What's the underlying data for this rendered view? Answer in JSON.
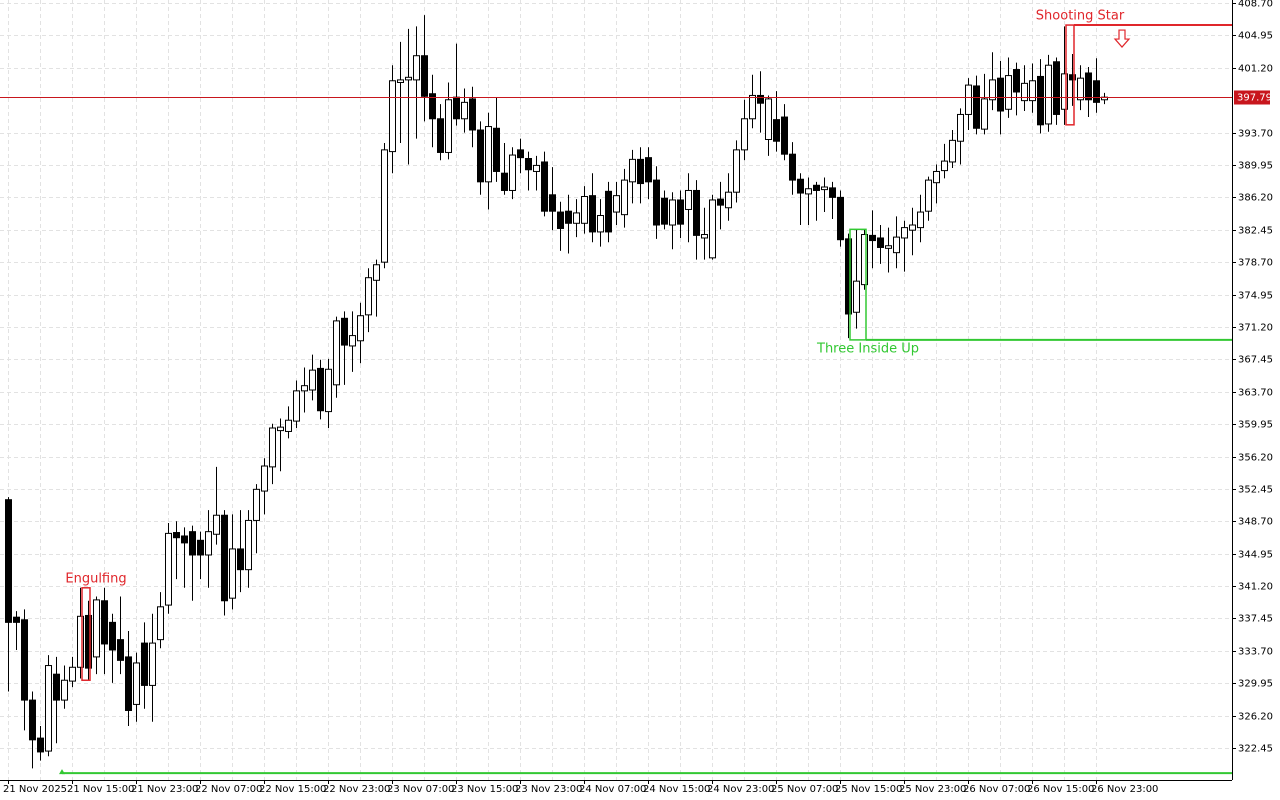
{
  "chart_data": {
    "type": "candlestick",
    "categories": [
      "21 Nov 2025",
      null,
      null,
      null,
      null,
      null,
      null,
      null,
      "21 Nov 15:00",
      null,
      null,
      null,
      null,
      null,
      null,
      null,
      "21 Nov 23:00",
      null,
      null,
      null,
      null,
      null,
      null,
      null,
      "22 Nov 07:00",
      null,
      null,
      null,
      null,
      null,
      null,
      null,
      "22 Nov 15:00",
      null,
      null,
      null,
      null,
      null,
      null,
      null,
      "22 Nov 23:00",
      null,
      null,
      null,
      null,
      null,
      null,
      null,
      "23 Nov 07:00",
      null,
      null,
      null,
      null,
      null,
      null,
      null,
      "23 Nov 15:00",
      null,
      null,
      null,
      null,
      null,
      null,
      null,
      "23 Nov 23:00",
      null,
      null,
      null,
      null,
      null,
      null,
      null,
      "24 Nov 07:00",
      null,
      null,
      null,
      null,
      null,
      null,
      null,
      "24 Nov 15:00",
      null,
      null,
      null,
      null,
      null,
      null,
      null,
      "24 Nov 23:00",
      null,
      null,
      null,
      null,
      null,
      null,
      null,
      "25 Nov 07:00",
      null,
      null,
      null,
      null,
      null,
      null,
      null,
      "25 Nov 15:00",
      null,
      null,
      null,
      null,
      null,
      null,
      null,
      "25 Nov 23:00",
      null,
      null,
      null,
      null,
      null,
      null,
      null,
      "26 Nov 07:00",
      null,
      null,
      null,
      null,
      null,
      null,
      null,
      "26 Nov 15:00",
      null,
      null,
      null,
      null,
      null,
      null,
      null,
      "26 Nov 23:00",
      null
    ],
    "open": [
      351.2,
      337.6,
      337.3,
      328.0,
      323.6,
      322.1,
      331.0,
      328.0,
      330.2,
      331.8,
      337.8,
      333.0,
      339.5,
      337.0,
      335.0,
      333.0,
      327.5,
      334.6,
      329.7,
      335.0,
      339.0,
      347.4,
      347.0,
      347.5,
      346.5,
      344.8,
      347.2,
      349.4,
      339.8,
      345.5,
      343.1,
      348.8,
      352.2,
      355.0,
      359.2,
      359.1,
      360.3,
      363.8,
      363.9,
      366.4,
      361.4,
      364.5,
      372.2,
      369.0,
      369.6,
      372.6,
      376.6,
      378.7,
      391.5,
      399.5,
      399.8,
      399.8,
      402.6,
      398.2,
      395.3,
      391.4,
      397.8,
      395.3,
      397.6,
      394.0,
      388.0,
      394.2,
      389.0,
      387.0,
      391.7,
      390.7,
      389.2,
      390.3,
      386.5,
      384.5,
      384.6,
      383.2,
      383.2,
      386.4,
      382.2,
      386.9,
      384.5,
      384.2,
      388.0,
      390.6,
      390.8,
      388.2,
      386.1,
      383.0,
      385.9,
      384.8,
      387.0,
      381.5,
      379.2,
      386.0,
      385.0,
      386.8,
      391.7,
      395.3,
      398.0,
      392.9,
      395.2,
      395.5,
      391.2,
      388.3,
      386.6,
      387.6,
      387.1,
      387.3,
      386.2,
      381.4,
      372.9,
      376.1,
      381.8,
      381.5,
      380.3,
      379.8,
      381.5,
      382.4,
      382.7,
      384.6,
      387.9,
      389.3,
      390.3,
      392.7,
      395.8,
      399.1,
      394.1,
      397.5,
      400.0,
      396.4,
      401.0,
      397.4,
      397.4,
      400.2,
      394.7,
      401.9,
      396.4,
      400.4,
      397.5,
      400.6,
      399.7,
      397.5
    ],
    "high": [
      351.5,
      338.3,
      338.5,
      329.0,
      325.0,
      333.2,
      333.0,
      332.0,
      333.0,
      341.0,
      339.5,
      340.0,
      341.0,
      338.0,
      340.0,
      336.0,
      333.5,
      337.0,
      338.0,
      340.5,
      348.5,
      348.7,
      348.0,
      348.2,
      347.5,
      350.0,
      355.0,
      350.0,
      349.5,
      350.0,
      350.0,
      353.0,
      356.0,
      360.0,
      360.6,
      362.0,
      365.0,
      366.5,
      368.0,
      367.4,
      367.5,
      372.4,
      373.0,
      373.0,
      374.0,
      378.0,
      379.0,
      392.5,
      401.5,
      404.2,
      405.7,
      406.0,
      407.3,
      400.4,
      397.0,
      399.5,
      404.0,
      398.8,
      399.0,
      395.0,
      396.0,
      397.8,
      392.5,
      392.0,
      393.0,
      391.5,
      391.0,
      391.5,
      389.7,
      385.7,
      386.5,
      386.0,
      387.5,
      389.0,
      386.0,
      388.0,
      388.0,
      389.5,
      391.7,
      392.0,
      392.0,
      389.8,
      387.0,
      386.8,
      387.0,
      389.0,
      388.2,
      385.0,
      386.5,
      388.0,
      389.0,
      392.8,
      397.5,
      400.4,
      400.8,
      398.0,
      398.5,
      397.0,
      392.6,
      389.0,
      388.5,
      388.0,
      388.5,
      388.0,
      387.0,
      382.0,
      382.5,
      382.5,
      384.7,
      383.0,
      382.7,
      384.0,
      383.5,
      385.0,
      386.5,
      388.6,
      390.0,
      392.4,
      394.0,
      396.5,
      400.0,
      400.3,
      400.5,
      403.0,
      402.0,
      402.4,
      401.8,
      401.5,
      401.7,
      402.2,
      402.7,
      402.4,
      406.0,
      402.8,
      401.5,
      401.3,
      402.3,
      398.3
    ],
    "low": [
      329.0,
      333.8,
      324.5,
      320.1,
      321.0,
      321.5,
      323.0,
      327.0,
      329.5,
      330.5,
      330.3,
      331.0,
      331.0,
      330.0,
      331.0,
      325.0,
      325.5,
      327.0,
      325.5,
      334.0,
      338.0,
      342.0,
      341.0,
      339.5,
      342.0,
      341.0,
      346.0,
      337.8,
      338.5,
      340.5,
      341.0,
      345.0,
      349.5,
      353.0,
      354.5,
      358.3,
      359.5,
      361.3,
      362.7,
      360.5,
      359.5,
      363.0,
      364.5,
      366.0,
      367.0,
      370.6,
      372.4,
      378.0,
      389.0,
      392.5,
      390.0,
      393.0,
      395.0,
      392.0,
      390.5,
      390.6,
      394.5,
      393.7,
      392.0,
      386.5,
      384.8,
      388.0,
      386.5,
      386.0,
      389.0,
      387.0,
      387.0,
      384.0,
      382.4,
      380.0,
      379.7,
      381.6,
      382.0,
      381.0,
      380.5,
      381.0,
      383.0,
      382.7,
      385.5,
      385.5,
      386.0,
      381.4,
      382.5,
      380.2,
      381.5,
      381.0,
      379.0,
      379.0,
      379.0,
      382.5,
      383.5,
      385.6,
      390.5,
      394.2,
      393.7,
      391.0,
      391.5,
      390.5,
      386.5,
      383.0,
      383.0,
      383.5,
      384.5,
      383.7,
      380.5,
      369.9,
      371.0,
      375.5,
      378.0,
      378.5,
      377.5,
      378.0,
      377.6,
      379.5,
      381.0,
      383.5,
      385.5,
      388.4,
      389.6,
      390.0,
      394.0,
      393.5,
      393.5,
      396.3,
      393.5,
      395.4,
      395.7,
      396.2,
      396.0,
      393.6,
      393.8,
      394.6,
      394.6,
      396.8,
      396.3,
      395.5,
      396.0,
      397.0
    ],
    "close": [
      337.0,
      337.0,
      328.0,
      323.4,
      322.0,
      332.0,
      328.0,
      330.3,
      331.8,
      337.7,
      331.7,
      339.6,
      334.5,
      333.8,
      332.6,
      326.8,
      332.3,
      329.7,
      334.6,
      338.8,
      347.3,
      346.8,
      346.2,
      344.8,
      344.8,
      347.5,
      349.4,
      339.5,
      345.5,
      343.1,
      348.8,
      352.4,
      355.1,
      359.5,
      359.6,
      360.4,
      363.8,
      364.4,
      366.2,
      361.5,
      366.3,
      371.9,
      369.1,
      370.2,
      372.5,
      376.9,
      378.4,
      391.7,
      399.7,
      399.8,
      400.1,
      402.6,
      397.9,
      395.3,
      391.4,
      397.5,
      395.3,
      397.2,
      394.0,
      388.0,
      394.4,
      389.2,
      387.0,
      391.1,
      390.8,
      389.4,
      389.9,
      384.6,
      384.6,
      382.6,
      383.2,
      384.4,
      386.3,
      382.2,
      384.1,
      382.2,
      386.4,
      388.2,
      390.6,
      387.8,
      388.0,
      383.0,
      383.1,
      385.9,
      383.1,
      387.0,
      381.8,
      381.9,
      385.9,
      385.3,
      386.8,
      391.7,
      395.3,
      398.0,
      397.1,
      397.6,
      392.7,
      391.2,
      388.2,
      386.7,
      387.2,
      387.0,
      387.4,
      386.2,
      381.3,
      372.7,
      376.5,
      381.9,
      381.2,
      380.4,
      380.6,
      381.6,
      382.7,
      383.0,
      384.5,
      388.2,
      389.2,
      390.4,
      392.8,
      395.8,
      399.2,
      394.2,
      397.6,
      399.8,
      396.2,
      400.3,
      398.4,
      399.4,
      399.7,
      394.6,
      401.5,
      395.8,
      400.5,
      399.8,
      400.0,
      397.5,
      397.2,
      397.8
    ],
    "up_color": "#ffffff",
    "down_color": "#000000",
    "ylim": [
      318.75,
      409.05
    ],
    "yticks": [
      {
        "value": 408.7,
        "label": "408.70"
      },
      404.95,
      {
        "value": 401.2,
        "label": "401.20"
      },
      {
        "value": 393.7,
        "label": "393.70"
      },
      389.95,
      {
        "value": 386.2,
        "label": "386.20"
      },
      382.45,
      {
        "value": 378.7,
        "label": "378.70"
      },
      374.95,
      {
        "value": 371.2,
        "label": "371.20"
      },
      367.45,
      {
        "value": 363.7,
        "label": "363.70"
      },
      359.95,
      {
        "value": 356.2,
        "label": "356.20"
      },
      352.45,
      {
        "value": 348.7,
        "label": "348.70"
      },
      344.95,
      {
        "value": 341.2,
        "label": "341.20"
      },
      337.45,
      {
        "value": 333.7,
        "label": "333.70"
      },
      329.95,
      {
        "value": 326.2,
        "label": "326.20"
      },
      322.45
    ],
    "grid": true,
    "last_price": {
      "value": 397.79,
      "label": "397.79",
      "color": "#c8161d"
    },
    "patterns": [
      {
        "name": "Engulfing",
        "color": "#e0262b",
        "bars": [
          9,
          10
        ],
        "label_position": "above"
      },
      {
        "name": "Three Inside Up",
        "color": "#32c832",
        "bars": [
          105,
          107
        ],
        "level": 369.7,
        "label_position": "below"
      },
      {
        "name": "Shooting Star",
        "color": "#e0262b",
        "bars": [
          132,
          132
        ],
        "level": 406.15,
        "label_position": "above",
        "arrow": "down"
      }
    ],
    "support": {
      "value": 319.55,
      "color": "#32c832",
      "bar": 7
    }
  }
}
